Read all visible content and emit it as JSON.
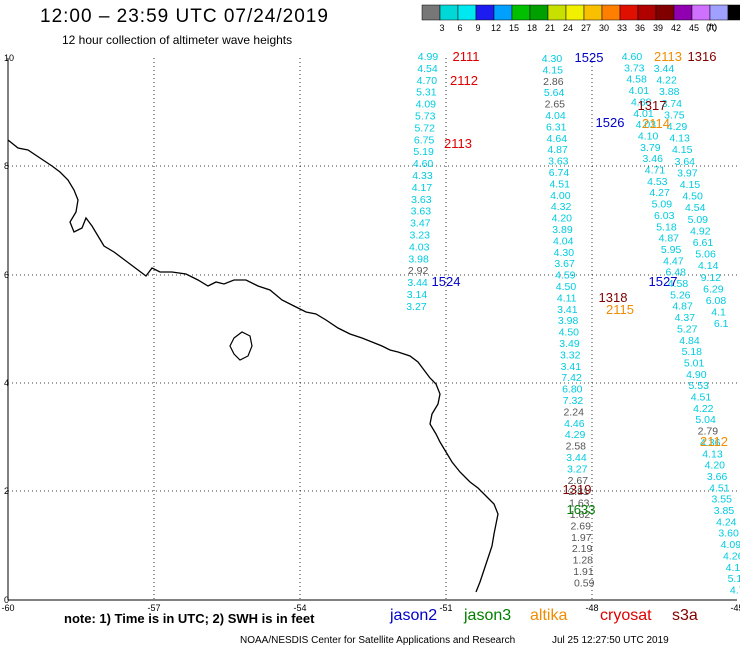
{
  "header": {
    "title": "12:00 – 23:59 UTC 07/24/2019",
    "subtitle": "12 hour collection of altimeter wave heights",
    "units": "(ft)"
  },
  "colorbar": {
    "labels": [
      "3",
      "6",
      "9",
      "12",
      "15",
      "18",
      "21",
      "24",
      "27",
      "30",
      "33",
      "36",
      "39",
      "42",
      "45",
      "70"
    ],
    "colors": [
      "#777777",
      "#00d8d8",
      "#00e8f0",
      "#1c1cf0",
      "#00a0ff",
      "#00c000",
      "#00a000",
      "#c8e000",
      "#f0f000",
      "#f8c000",
      "#ff8000",
      "#e01000",
      "#b00000",
      "#800000",
      "#9000b0",
      "#d070ff",
      "#a0a0ff",
      "#000000"
    ]
  },
  "axes": {
    "x_ticks": [
      "-60",
      "-57",
      "-54",
      "-51",
      "-48",
      "-45"
    ],
    "y_ticks": [
      "10",
      "8",
      "6",
      "4",
      "2",
      "0"
    ],
    "lon_range": [
      -60,
      -45
    ],
    "lat_range": [
      0,
      10
    ]
  },
  "tracks": [
    {
      "id": "2111",
      "sat": "cryosat",
      "color": "#e00000"
    },
    {
      "id": "2112",
      "sat": "cryosat",
      "color": "#e00000"
    },
    {
      "id": "2113",
      "sat": "cryosat",
      "color": "#e00000"
    },
    {
      "id": "1524",
      "sat": "jason2",
      "color": "#0000c8"
    },
    {
      "id": "1525",
      "sat": "jason2",
      "color": "#0000c8"
    },
    {
      "id": "1526",
      "sat": "jason2",
      "color": "#0000c8"
    },
    {
      "id": "1527",
      "sat": "jason2",
      "color": "#0000c8"
    },
    {
      "id": "2112",
      "sat": "altika",
      "color": "#f08c00"
    },
    {
      "id": "2113",
      "sat": "altika",
      "color": "#f08c00"
    },
    {
      "id": "2114",
      "sat": "altika",
      "color": "#f08c00"
    },
    {
      "id": "2115",
      "sat": "altika",
      "color": "#f08c00"
    },
    {
      "id": "1633",
      "sat": "jason3",
      "color": "#008000"
    },
    {
      "id": "1316",
      "sat": "s3a",
      "color": "#800000"
    },
    {
      "id": "1317",
      "sat": "s3a",
      "color": "#800000"
    },
    {
      "id": "1318",
      "sat": "s3a",
      "color": "#800000"
    },
    {
      "id": "1319",
      "sat": "s3a",
      "color": "#800000"
    }
  ],
  "col_a": [
    "4.99",
    "4.54",
    "4.70",
    "5.31",
    "4.09",
    "5.73",
    "5.72",
    "6.75",
    "5.19",
    "4.60",
    "4.33",
    "4.17",
    "3.63",
    "3.63",
    "3.47",
    "3.23",
    "4.03",
    "3.98",
    "2.92",
    "3.44",
    "3.14",
    "3.27"
  ],
  "col_b": [
    "4.30",
    "4.15",
    "2.86",
    "5.64",
    "2.65",
    "4.04",
    "6.31",
    "4.64",
    "4.87",
    "3.63",
    "6.74",
    "4.51",
    "4.00",
    "4.32",
    "4.20",
    "3.89",
    "4.04",
    "4.30",
    "3.67",
    "4.59",
    "4.50",
    "4.11",
    "3.41",
    "3.98",
    "4.50",
    "3.49",
    "3.32",
    "3.41",
    "7.42",
    "6.80",
    "7.32",
    "2.24",
    "4.46",
    "4.29",
    "2.58",
    "3.44",
    "3.27",
    "2.67",
    "2.81",
    "1.63",
    "1.62",
    "2.69",
    "1.97",
    "2.19",
    "1.28",
    "1.91",
    "0.59"
  ],
  "col_c": [
    "4.60",
    "3.73",
    "4.58",
    "4.01",
    "4.88",
    "4.01",
    "4.03",
    "4.10",
    "3.79",
    "3.46",
    "4.71",
    "4.53",
    "4.27",
    "5.09",
    "6.03",
    "5.18",
    "4.87",
    "5.95",
    "4.47",
    "6.48",
    "4.58",
    "5.26",
    "4.87",
    "4.37",
    "5.27",
    "4.84",
    "5.18",
    "5.01",
    "4.90",
    "5.53",
    "4.51",
    "4.22",
    "5.04",
    "2.79",
    "4.36",
    "4.13",
    "4.20",
    "3.66",
    "4.51",
    "3.55",
    "3.85",
    "4.24",
    "3.60",
    "4.09",
    "4.26",
    "4.11",
    "5.18",
    "4.70"
  ],
  "col_d": [
    "3.44",
    "4.22",
    "3.88",
    "3.74",
    "3.75",
    "4.29",
    "4.13",
    "4.15",
    "3.64",
    "3.97",
    "4.15",
    "4.50",
    "4.54",
    "5.09",
    "4.92",
    "6.61",
    "5.06",
    "4.14",
    "9.12",
    "6.29",
    "6.08",
    "4.1",
    "6.1"
  ],
  "legend": {
    "note": "note:  1) Time is in UTC;  2) SWH is in feet",
    "sats": [
      {
        "name": "jason2",
        "color": "#0000c8"
      },
      {
        "name": "jason3",
        "color": "#008000"
      },
      {
        "name": "altika",
        "color": "#f08c00"
      },
      {
        "name": "cryosat",
        "color": "#e00000"
      },
      {
        "name": "s3a",
        "color": "#800000"
      }
    ]
  },
  "footer": {
    "credit": "NOAA/NESDIS Center for Satellite Applications and Research",
    "timestamp": "Jul 25 12:27:50 UTC 2019"
  }
}
